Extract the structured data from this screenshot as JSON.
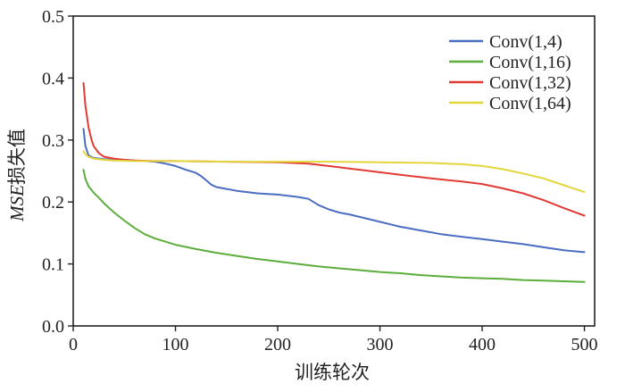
{
  "chart_data": {
    "type": "line",
    "xlabel": "训练轮次",
    "ylabel_prefix": "MSE",
    "ylabel_suffix": "损失值",
    "xlim": [
      0,
      510
    ],
    "ylim": [
      0.0,
      0.5
    ],
    "x_ticks": [
      0,
      100,
      200,
      300,
      400,
      500
    ],
    "x_tick_labels": [
      "0",
      "100",
      "200",
      "300",
      "400",
      "500"
    ],
    "y_ticks": [
      0.0,
      0.1,
      0.2,
      0.3,
      0.4,
      0.5
    ],
    "y_tick_labels": [
      "0.0",
      "0.1",
      "0.2",
      "0.3",
      "0.4",
      "0.5"
    ],
    "grid": false,
    "legend_position": "top-right",
    "series": [
      {
        "name": "Conv(1,4)",
        "color": "#4a6cc2",
        "x": [
          10,
          12,
          15,
          20,
          30,
          40,
          50,
          60,
          70,
          80,
          90,
          100,
          110,
          120,
          125,
          130,
          135,
          140,
          150,
          160,
          170,
          180,
          190,
          200,
          210,
          220,
          230,
          235,
          240,
          250,
          260,
          270,
          280,
          290,
          300,
          310,
          320,
          330,
          340,
          350,
          360,
          370,
          380,
          390,
          400,
          420,
          440,
          460,
          480,
          500
        ],
        "y": [
          0.318,
          0.29,
          0.275,
          0.271,
          0.269,
          0.268,
          0.268,
          0.267,
          0.266,
          0.265,
          0.262,
          0.258,
          0.252,
          0.247,
          0.242,
          0.235,
          0.228,
          0.224,
          0.221,
          0.218,
          0.216,
          0.214,
          0.213,
          0.212,
          0.21,
          0.208,
          0.205,
          0.2,
          0.195,
          0.188,
          0.183,
          0.18,
          0.176,
          0.172,
          0.168,
          0.164,
          0.16,
          0.157,
          0.154,
          0.151,
          0.148,
          0.146,
          0.144,
          0.142,
          0.14,
          0.136,
          0.132,
          0.127,
          0.122,
          0.119
        ]
      },
      {
        "name": "Conv(1,16)",
        "color": "#5cad3c",
        "x": [
          10,
          12,
          15,
          20,
          25,
          30,
          40,
          50,
          60,
          70,
          80,
          90,
          100,
          120,
          140,
          160,
          180,
          200,
          220,
          240,
          260,
          280,
          300,
          320,
          340,
          360,
          380,
          400,
          420,
          440,
          460,
          480,
          500
        ],
        "y": [
          0.252,
          0.237,
          0.225,
          0.215,
          0.207,
          0.198,
          0.183,
          0.17,
          0.158,
          0.148,
          0.141,
          0.136,
          0.131,
          0.124,
          0.118,
          0.113,
          0.108,
          0.104,
          0.1,
          0.096,
          0.093,
          0.09,
          0.087,
          0.085,
          0.082,
          0.08,
          0.078,
          0.077,
          0.076,
          0.074,
          0.073,
          0.072,
          0.071
        ]
      },
      {
        "name": "Conv(1,32)",
        "color": "#e23a35",
        "x": [
          10,
          12,
          15,
          18,
          20,
          25,
          30,
          40,
          50,
          60,
          80,
          100,
          150,
          200,
          230,
          260,
          290,
          320,
          350,
          380,
          400,
          420,
          440,
          460,
          480,
          500
        ],
        "y": [
          0.392,
          0.355,
          0.32,
          0.3,
          0.29,
          0.279,
          0.273,
          0.27,
          0.268,
          0.267,
          0.266,
          0.266,
          0.265,
          0.264,
          0.262,
          0.256,
          0.25,
          0.244,
          0.238,
          0.233,
          0.229,
          0.222,
          0.214,
          0.203,
          0.19,
          0.178
        ]
      },
      {
        "name": "Conv(1,64)",
        "color": "#e3d63b",
        "x": [
          10,
          12,
          15,
          20,
          30,
          40,
          60,
          80,
          100,
          150,
          200,
          250,
          300,
          350,
          380,
          400,
          420,
          440,
          460,
          480,
          500
        ],
        "y": [
          0.282,
          0.277,
          0.273,
          0.27,
          0.268,
          0.267,
          0.266,
          0.266,
          0.266,
          0.265,
          0.265,
          0.265,
          0.264,
          0.263,
          0.261,
          0.258,
          0.253,
          0.246,
          0.238,
          0.227,
          0.216
        ]
      }
    ]
  }
}
